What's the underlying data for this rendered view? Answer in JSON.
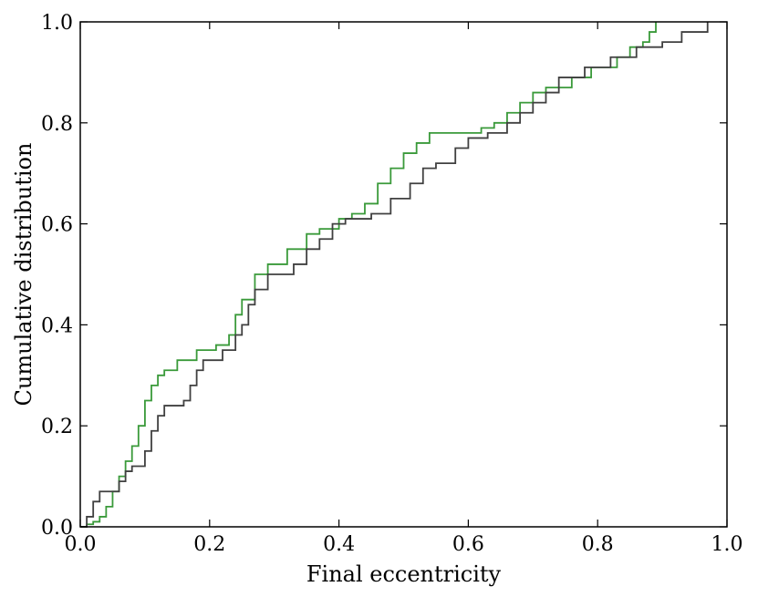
{
  "chart_data": {
    "type": "line",
    "step": true,
    "title": "",
    "xlabel": "Final eccentricity",
    "ylabel": "Cumulative distribution",
    "xlim": [
      0.0,
      1.0
    ],
    "ylim": [
      0.0,
      1.0
    ],
    "xticks": [
      "0.0",
      "0.2",
      "0.4",
      "0.6",
      "0.8",
      "1.0"
    ],
    "yticks": [
      "0.0",
      "0.2",
      "0.4",
      "0.6",
      "0.8",
      "1.0"
    ],
    "grid": false,
    "legend": "none",
    "series": [
      {
        "color": "#3a9a3a",
        "points": [
          [
            0.0,
            0.0
          ],
          [
            0.01,
            0.005
          ],
          [
            0.02,
            0.01
          ],
          [
            0.03,
            0.02
          ],
          [
            0.04,
            0.04
          ],
          [
            0.05,
            0.07
          ],
          [
            0.06,
            0.1
          ],
          [
            0.07,
            0.13
          ],
          [
            0.08,
            0.16
          ],
          [
            0.09,
            0.2
          ],
          [
            0.1,
            0.25
          ],
          [
            0.11,
            0.28
          ],
          [
            0.12,
            0.3
          ],
          [
            0.13,
            0.31
          ],
          [
            0.15,
            0.33
          ],
          [
            0.18,
            0.35
          ],
          [
            0.21,
            0.36
          ],
          [
            0.23,
            0.38
          ],
          [
            0.24,
            0.42
          ],
          [
            0.25,
            0.45
          ],
          [
            0.27,
            0.5
          ],
          [
            0.29,
            0.52
          ],
          [
            0.32,
            0.55
          ],
          [
            0.35,
            0.58
          ],
          [
            0.37,
            0.59
          ],
          [
            0.4,
            0.61
          ],
          [
            0.42,
            0.62
          ],
          [
            0.44,
            0.64
          ],
          [
            0.46,
            0.68
          ],
          [
            0.48,
            0.71
          ],
          [
            0.5,
            0.74
          ],
          [
            0.52,
            0.76
          ],
          [
            0.54,
            0.78
          ],
          [
            0.6,
            0.78
          ],
          [
            0.62,
            0.79
          ],
          [
            0.64,
            0.8
          ],
          [
            0.66,
            0.82
          ],
          [
            0.68,
            0.84
          ],
          [
            0.7,
            0.86
          ],
          [
            0.72,
            0.87
          ],
          [
            0.76,
            0.89
          ],
          [
            0.79,
            0.91
          ],
          [
            0.83,
            0.93
          ],
          [
            0.85,
            0.95
          ],
          [
            0.87,
            0.96
          ],
          [
            0.88,
            0.98
          ],
          [
            0.89,
            1.0
          ]
        ]
      },
      {
        "color": "#404040",
        "points": [
          [
            0.0,
            0.0
          ],
          [
            0.01,
            0.02
          ],
          [
            0.02,
            0.05
          ],
          [
            0.03,
            0.07
          ],
          [
            0.05,
            0.07
          ],
          [
            0.06,
            0.09
          ],
          [
            0.07,
            0.11
          ],
          [
            0.08,
            0.12
          ],
          [
            0.1,
            0.15
          ],
          [
            0.11,
            0.19
          ],
          [
            0.12,
            0.22
          ],
          [
            0.13,
            0.24
          ],
          [
            0.16,
            0.25
          ],
          [
            0.17,
            0.28
          ],
          [
            0.18,
            0.31
          ],
          [
            0.19,
            0.33
          ],
          [
            0.22,
            0.35
          ],
          [
            0.24,
            0.38
          ],
          [
            0.25,
            0.4
          ],
          [
            0.26,
            0.44
          ],
          [
            0.27,
            0.47
          ],
          [
            0.29,
            0.5
          ],
          [
            0.33,
            0.52
          ],
          [
            0.35,
            0.55
          ],
          [
            0.37,
            0.57
          ],
          [
            0.39,
            0.6
          ],
          [
            0.41,
            0.61
          ],
          [
            0.45,
            0.62
          ],
          [
            0.48,
            0.65
          ],
          [
            0.51,
            0.68
          ],
          [
            0.53,
            0.71
          ],
          [
            0.55,
            0.72
          ],
          [
            0.58,
            0.75
          ],
          [
            0.6,
            0.77
          ],
          [
            0.63,
            0.78
          ],
          [
            0.66,
            0.8
          ],
          [
            0.68,
            0.82
          ],
          [
            0.7,
            0.84
          ],
          [
            0.72,
            0.86
          ],
          [
            0.74,
            0.89
          ],
          [
            0.78,
            0.91
          ],
          [
            0.82,
            0.93
          ],
          [
            0.86,
            0.95
          ],
          [
            0.9,
            0.96
          ],
          [
            0.93,
            0.98
          ],
          [
            0.97,
            1.0
          ]
        ]
      }
    ]
  }
}
